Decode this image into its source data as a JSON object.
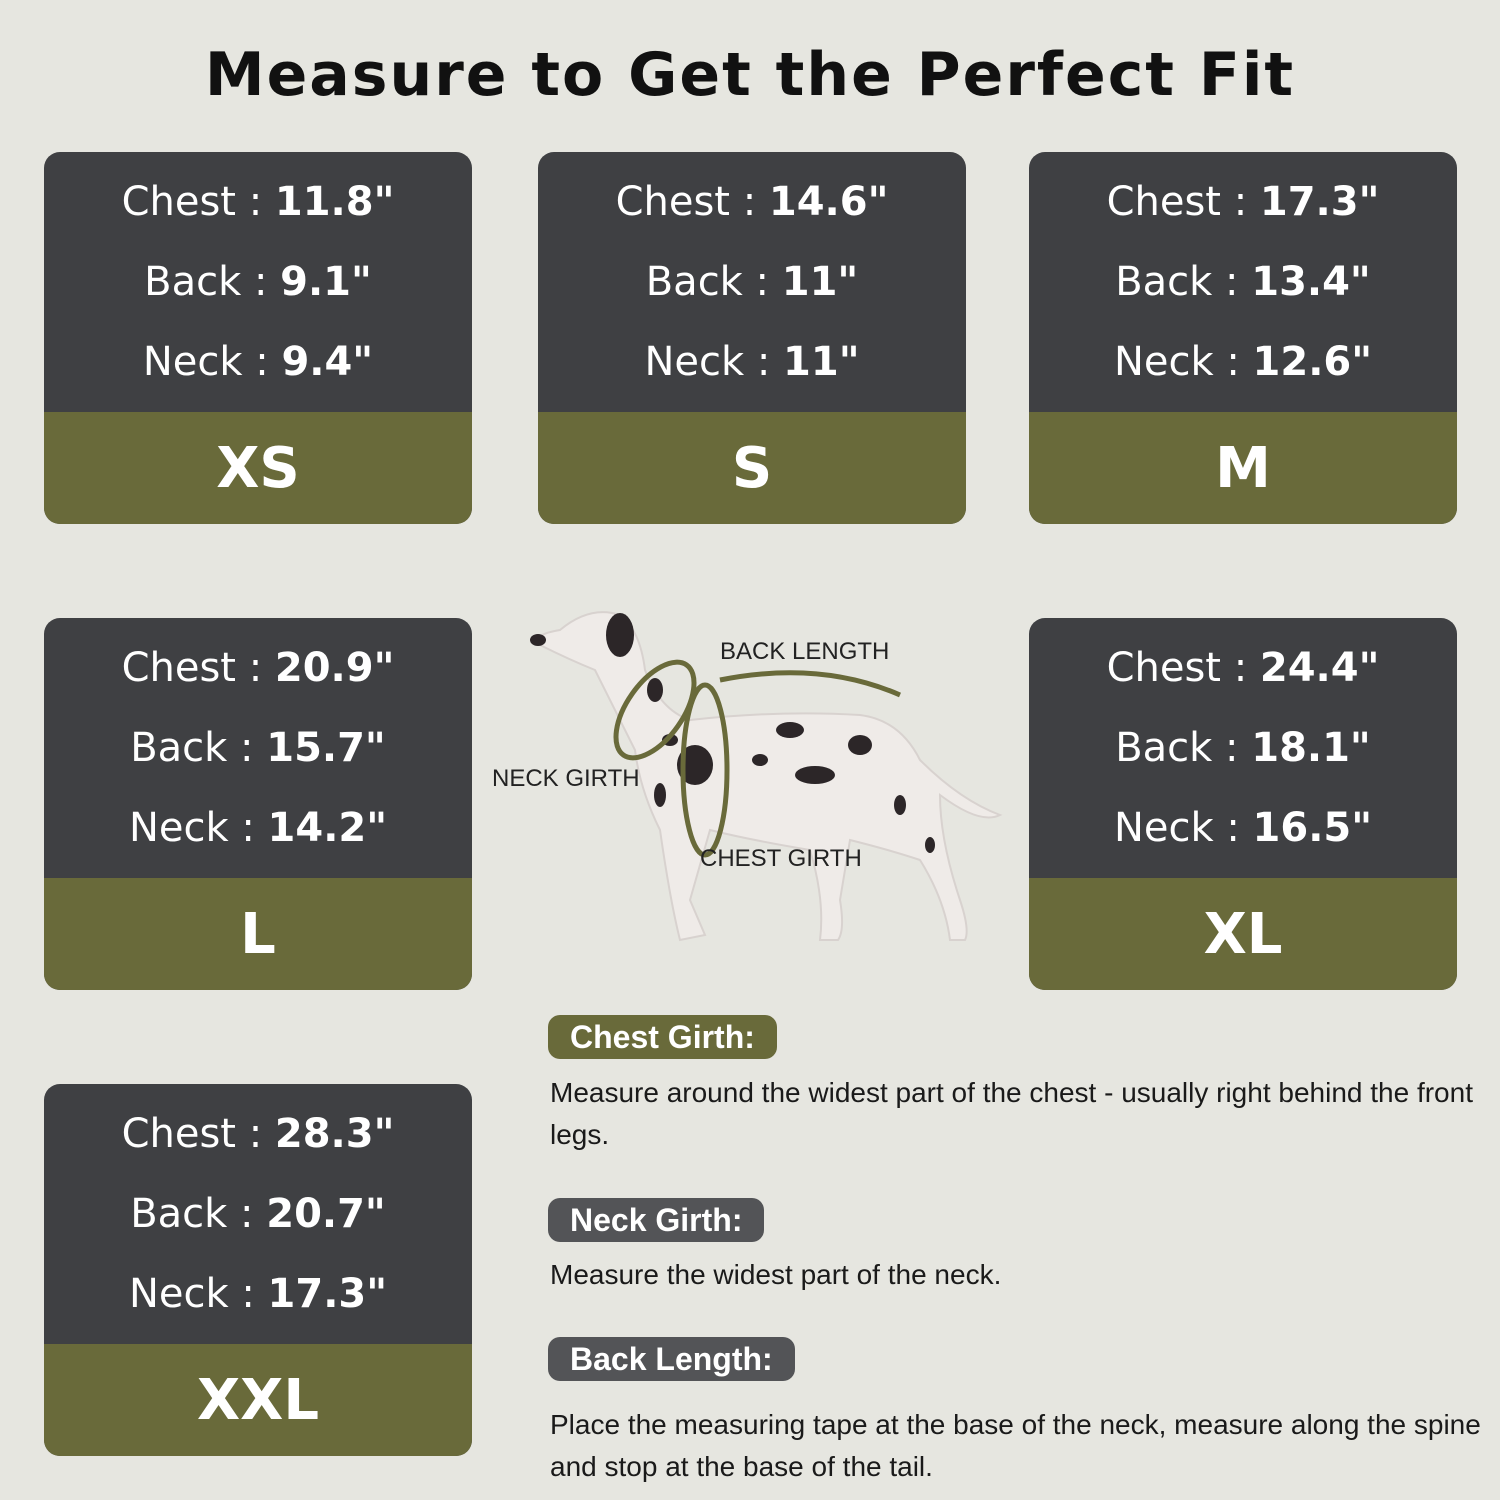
{
  "title": "Measure to Get the Perfect Fit",
  "sizes": [
    {
      "size": "XS",
      "chest_label": "Chest",
      "chest": "11.8\"",
      "back_label": "Back",
      "back": "9.1\"",
      "neck_label": "Neck",
      "neck": "9.4\""
    },
    {
      "size": "S",
      "chest_label": "Chest",
      "chest": "14.6\"",
      "back_label": "Back",
      "back": "11\"",
      "neck_label": "Neck",
      "neck": "11\""
    },
    {
      "size": "M",
      "chest_label": "Chest",
      "chest": "17.3\"",
      "back_label": "Back",
      "back": "13.4\"",
      "neck_label": "Neck",
      "neck": "12.6\""
    },
    {
      "size": "L",
      "chest_label": "Chest",
      "chest": "20.9\"",
      "back_label": "Back",
      "back": "15.7\"",
      "neck_label": "Neck",
      "neck": "14.2\""
    },
    {
      "size": "XL",
      "chest_label": "Chest",
      "chest": "24.4\"",
      "back_label": "Back",
      "back": "18.1\"",
      "neck_label": "Neck",
      "neck": "16.5\""
    },
    {
      "size": "XXL",
      "chest_label": "Chest",
      "chest": "28.3\"",
      "back_label": "Back",
      "back": "20.7\"",
      "neck_label": "Neck",
      "neck": "17.3\""
    }
  ],
  "diagram": {
    "back_length": "BACK LENGTH",
    "neck_girth": "NECK GIRTH",
    "chest_girth": "CHEST GIRTH"
  },
  "guides": [
    {
      "heading": "Chest Girth:",
      "text": "Measure around the widest part of the chest - usually right behind the front legs.",
      "color": "#696a3a"
    },
    {
      "heading": "Neck Girth:",
      "text": "Measure the widest part of the neck.",
      "color": "#535457"
    },
    {
      "heading": "Back Length:",
      "text": "Place the measuring tape at the base of the neck, measure along the spine and stop at the base of the tail.",
      "color": "#535457"
    }
  ],
  "colors": {
    "background": "#e6e6e0",
    "card_dark": "#3f4043",
    "card_olive": "#696a3a"
  }
}
